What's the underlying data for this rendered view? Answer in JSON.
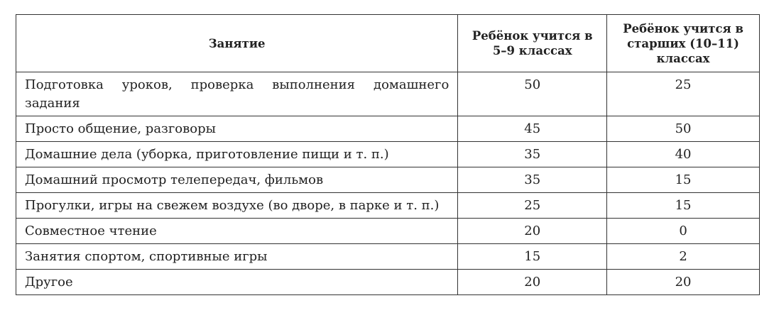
{
  "table": {
    "headers": [
      "Занятие",
      "Ребёнок учится в 5–9 классах",
      "Ребёнок учится в старших (10–11) классах"
    ],
    "rows": [
      {
        "activity": "Подготовка уроков, проверка выполнения домашнего задания",
        "grades_5_9": "50",
        "grades_10_11": "25"
      },
      {
        "activity": "Просто общение, разговоры",
        "grades_5_9": "45",
        "grades_10_11": "50"
      },
      {
        "activity": "Домашние дела (уборка, приготовление пищи и т. п.)",
        "grades_5_9": "35",
        "grades_10_11": "40"
      },
      {
        "activity": "Домашний просмотр телепередач, фильмов",
        "grades_5_9": "35",
        "grades_10_11": "15"
      },
      {
        "activity": "Прогулки, игры на свежем воздухе (во дворе, в парке и т. п.)",
        "grades_5_9": "25",
        "grades_10_11": "15"
      },
      {
        "activity": "Совместное чтение",
        "grades_5_9": "20",
        "grades_10_11": "0"
      },
      {
        "activity": "Занятия спортом, спортивные игры",
        "grades_5_9": "15",
        "grades_10_11": "2"
      },
      {
        "activity": "Другое",
        "grades_5_9": "20",
        "grades_10_11": "20"
      }
    ]
  }
}
